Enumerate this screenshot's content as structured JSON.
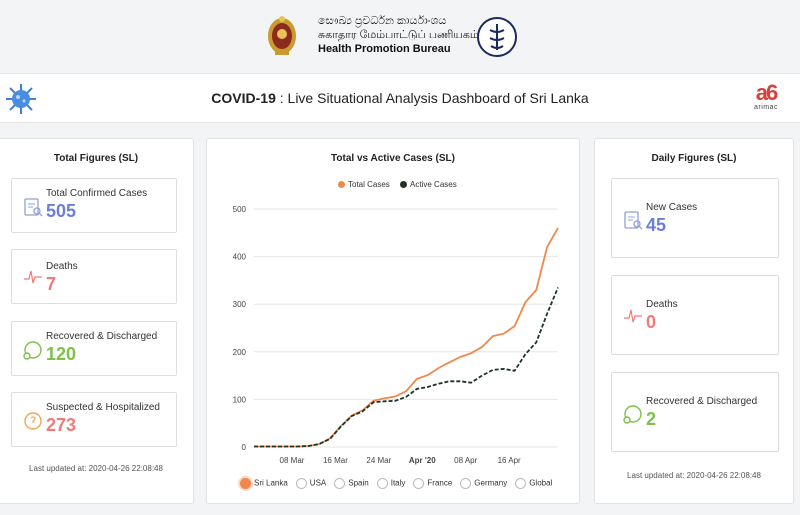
{
  "header": {
    "sinhala": "සෞඛ්‍ය ප්‍රවර්ධන කාර්යාංශය",
    "tamil": "சுகாதார மேம்பாட்டுப் பணியகம்",
    "english": "Health Promotion Bureau"
  },
  "titlebar": {
    "bold": "COVID-19",
    "rest": " : Live Situational Analysis Dashboard of Sri Lanka",
    "brand": "arimac"
  },
  "total": {
    "title": "Total Figures (SL)",
    "items": [
      {
        "label": "Total Confirmed Cases",
        "value": "505",
        "color": "#6b7fd7",
        "icon": "clipboard-search-icon"
      },
      {
        "label": "Deaths",
        "value": "7",
        "color": "#f07b78",
        "icon": "heartbeat-icon"
      },
      {
        "label": "Recovered & Discharged",
        "value": "120",
        "color": "#7cc14a",
        "icon": "recovered-icon"
      },
      {
        "label": "Suspected & Hospitalized",
        "value": "273",
        "color": "#f07b78",
        "icon": "suspected-icon"
      }
    ],
    "updated": "Last updated at: 2020-04-26 22:08:48"
  },
  "chart": {
    "title": "Total vs Active Cases (SL)",
    "legend": [
      {
        "name": "Total Cases",
        "color": "#f0884d"
      },
      {
        "name": "Active Cases",
        "color": "#1f3324"
      }
    ],
    "countries": [
      "Sri Lanka",
      "USA",
      "Spain",
      "Italy",
      "France",
      "Germany",
      "Global"
    ],
    "selected": "Sri Lanka"
  },
  "chart_data": {
    "type": "line",
    "title": "Total vs Active Cases (SL)",
    "x_ticks": [
      "08 Mar",
      "16 Mar",
      "24 Mar",
      "Apr '20",
      "08 Apr",
      "16 Apr"
    ],
    "y_ticks": [
      0,
      100,
      200,
      300,
      400,
      500
    ],
    "ylim": [
      0,
      500
    ],
    "x": [
      "Mar 01",
      "Mar 03",
      "Mar 05",
      "Mar 07",
      "Mar 09",
      "Mar 11",
      "Mar 13",
      "Mar 15",
      "Mar 17",
      "Mar 19",
      "Mar 21",
      "Mar 23",
      "Mar 25",
      "Mar 27",
      "Mar 29",
      "Mar 31",
      "Apr 02",
      "Apr 04",
      "Apr 06",
      "Apr 08",
      "Apr 10",
      "Apr 12",
      "Apr 14",
      "Apr 16",
      "Apr 18",
      "Apr 20",
      "Apr 22",
      "Apr 24",
      "Apr 26"
    ],
    "series": [
      {
        "name": "Total Cases",
        "color": "#f0884d",
        "values": [
          1,
          1,
          1,
          1,
          1,
          2,
          6,
          18,
          44,
          66,
          77,
          97,
          102,
          106,
          117,
          143,
          151,
          166,
          178,
          189,
          197,
          210,
          233,
          238,
          254,
          304,
          330,
          420,
          460
        ]
      },
      {
        "name": "Active Cases",
        "color": "#1f3324",
        "values": [
          1,
          1,
          1,
          1,
          1,
          2,
          6,
          17,
          43,
          65,
          75,
          94,
          96,
          97,
          105,
          122,
          126,
          133,
          138,
          138,
          135,
          150,
          162,
          164,
          160,
          195,
          220,
          280,
          335
        ]
      }
    ],
    "grid": true,
    "legend_position": "top"
  },
  "daily": {
    "title": "Daily Figures (SL)",
    "items": [
      {
        "label": "New Cases",
        "value": "45",
        "color": "#6b7fd7",
        "icon": "clipboard-search-icon"
      },
      {
        "label": "Deaths",
        "value": "0",
        "color": "#f07b78",
        "icon": "heartbeat-icon"
      },
      {
        "label": "Recovered & Discharged",
        "value": "2",
        "color": "#7cc14a",
        "icon": "recovered-icon"
      }
    ],
    "updated": "Last updated at: 2020-04-26 22:08:48"
  }
}
